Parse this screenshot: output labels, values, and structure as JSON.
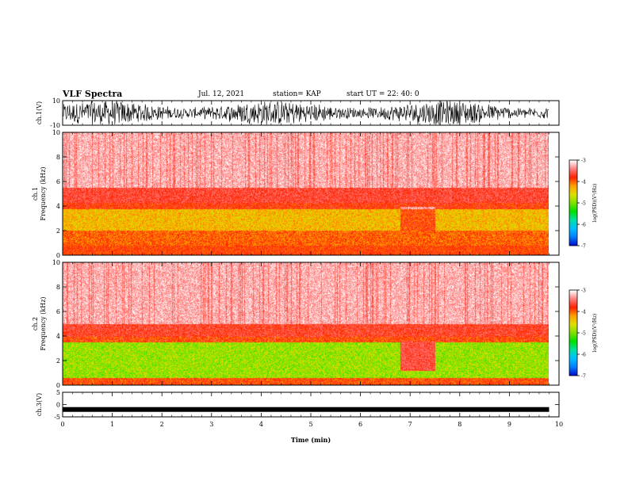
{
  "header": {
    "title": "VLF Spectra",
    "date": "Jul. 12, 2021",
    "station": "station= KAP",
    "start": "start UT =  22: 40: 0"
  },
  "colors": {
    "colormap": [
      "#0010d0",
      "#0080ff",
      "#00c0ff",
      "#00e0a0",
      "#00e000",
      "#80e000",
      "#e0e000",
      "#ffa000",
      "#ff2000",
      "#ff8080",
      "#ffffff"
    ],
    "waveform": "#000000"
  },
  "chart_data": [
    {
      "type": "line",
      "name": "ch1-waveform",
      "ylabel": "ch.1(V)",
      "ylim": [
        -10,
        10
      ],
      "yticks": [
        "10",
        "-10"
      ],
      "description_values": "dense VLF waveform oscillating roughly between -10 and 10 V over 0-9.8 min"
    },
    {
      "type": "heatmap",
      "name": "ch1-spectrogram",
      "ylabel": "ch.1 Frequency (kHz)",
      "ylim": [
        0,
        10
      ],
      "yticks": [
        "0",
        "2",
        "4",
        "6",
        "8",
        "10"
      ],
      "xlim": [
        0,
        10
      ],
      "data_end_min": 9.8,
      "colorbar": {
        "label": "log(PSD)(V²/Hz)",
        "range": [
          -7,
          -3
        ],
        "ticks": [
          "-3",
          "-4",
          "-5",
          "-6",
          "-7"
        ]
      }
    },
    {
      "type": "heatmap",
      "name": "ch2-spectrogram",
      "ylabel": "ch.2 Frequency (kHz)",
      "ylim": [
        0,
        10
      ],
      "yticks": [
        "0",
        "2",
        "4",
        "6",
        "8",
        "10"
      ],
      "xlim": [
        0,
        10
      ],
      "data_end_min": 9.8,
      "colorbar": {
        "label": "log(PSD)(V²/Hz)",
        "range": [
          -7,
          -3
        ],
        "ticks": [
          "-3",
          "-4",
          "-5",
          "-6",
          "-7"
        ]
      }
    },
    {
      "type": "line",
      "name": "ch3-waveform",
      "ylabel": "ch.3(V)",
      "ylim": [
        -5,
        5
      ],
      "yticks": [
        "5",
        "0",
        "-5"
      ],
      "level": -2
    }
  ],
  "xaxis": {
    "label": "Time (min)",
    "ticks": [
      "0",
      "1",
      "2",
      "3",
      "4",
      "5",
      "6",
      "7",
      "8",
      "9",
      "10"
    ]
  }
}
